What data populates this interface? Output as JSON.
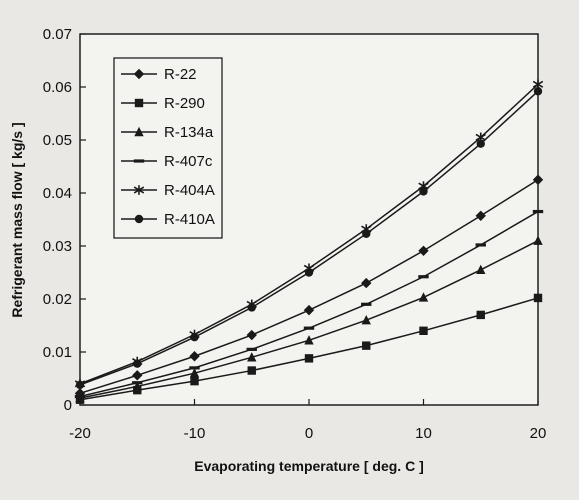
{
  "chart_data": {
    "type": "line",
    "xlabel": "Evaporating temperature [ deg. C ]",
    "ylabel": "Refrigerant mass flow [ kg/s ]",
    "xlim": [
      -20,
      20
    ],
    "ylim": [
      0,
      0.07
    ],
    "xticks": [
      "-20",
      "-10",
      "0",
      "10",
      "20"
    ],
    "xtick_values": [
      -20,
      -10,
      0,
      10,
      20
    ],
    "yticks": [
      "0",
      "0.01",
      "0.02",
      "0.03",
      "0.04",
      "0.05",
      "0.06",
      "0.07"
    ],
    "ytick_values": [
      0,
      0.01,
      0.02,
      0.03,
      0.04,
      0.05,
      0.06,
      0.07
    ],
    "grid": false,
    "legend_position": "top-left",
    "x": [
      -20,
      -15,
      -10,
      -5,
      0,
      5,
      10,
      15,
      20
    ],
    "series": [
      {
        "name": "R-22",
        "marker": "diamond",
        "values": [
          0.0022,
          0.0056,
          0.0092,
          0.0132,
          0.0179,
          0.023,
          0.0291,
          0.0357,
          0.0425
        ]
      },
      {
        "name": "R-290",
        "marker": "square",
        "values": [
          0.001,
          0.0028,
          0.0045,
          0.0065,
          0.0088,
          0.0112,
          0.014,
          0.017,
          0.0202
        ]
      },
      {
        "name": "R-134a",
        "marker": "triangle",
        "values": [
          0.0013,
          0.0035,
          0.006,
          0.009,
          0.0122,
          0.016,
          0.0203,
          0.0255,
          0.031
        ]
      },
      {
        "name": "R-407c",
        "marker": "dash",
        "values": [
          0.0016,
          0.0042,
          0.007,
          0.0105,
          0.0145,
          0.019,
          0.0242,
          0.0302,
          0.0365
        ]
      },
      {
        "name": "R-404A",
        "marker": "star",
        "values": [
          0.004,
          0.0082,
          0.0133,
          0.019,
          0.0258,
          0.0332,
          0.0413,
          0.0505,
          0.0605
        ]
      },
      {
        "name": "R-410A",
        "marker": "circle",
        "values": [
          0.0038,
          0.0078,
          0.0128,
          0.0184,
          0.025,
          0.0323,
          0.0403,
          0.0493,
          0.0592
        ]
      }
    ]
  }
}
